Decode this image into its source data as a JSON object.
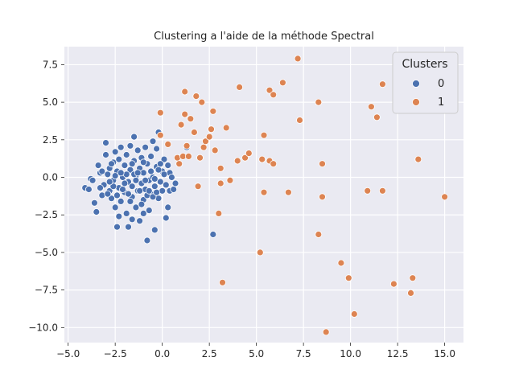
{
  "chart_data": {
    "type": "scatter",
    "title": "Clustering a l'aide de la méthode Spectral",
    "xlabel": "",
    "ylabel": "",
    "xlim": [
      -5.2,
      16.0
    ],
    "ylim": [
      -11.0,
      8.7
    ],
    "xticks": [
      -5.0,
      -2.5,
      0.0,
      2.5,
      5.0,
      7.5,
      10.0,
      12.5,
      15.0
    ],
    "xtick_labels": [
      "−5.0",
      "−2.5",
      "0.0",
      "2.5",
      "5.0",
      "7.5",
      "10.0",
      "12.5",
      "15.0"
    ],
    "yticks": [
      7.5,
      5.0,
      2.5,
      0.0,
      -2.5,
      -5.0,
      -7.5,
      -10.0
    ],
    "ytick_labels": [
      "7.5",
      "5.0",
      "2.5",
      "0.0",
      "−2.5",
      "−5.0",
      "−7.5",
      "−10.0"
    ],
    "grid": true,
    "legend": {
      "title": "Clusters",
      "placement": "top-right"
    },
    "series": [
      {
        "name": "0",
        "color": "#4c72b0",
        "points": [
          [
            -4.1,
            -0.7
          ],
          [
            -3.8,
            -0.1
          ],
          [
            -3.6,
            -1.7
          ],
          [
            -3.5,
            -2.3
          ],
          [
            -3.4,
            0.8
          ],
          [
            -3.3,
            0.3
          ],
          [
            -3.2,
            -1.2
          ],
          [
            -3.1,
            -0.5
          ],
          [
            -3.0,
            1.5
          ],
          [
            -3.0,
            2.3
          ],
          [
            -2.9,
            0.2
          ],
          [
            -2.8,
            -0.9
          ],
          [
            -2.8,
            0.6
          ],
          [
            -2.7,
            -1.4
          ],
          [
            -2.6,
            1.0
          ],
          [
            -2.6,
            -0.2
          ],
          [
            -2.5,
            1.7
          ],
          [
            -2.5,
            -2.0
          ],
          [
            -2.4,
            0.4
          ],
          [
            -2.4,
            -3.3
          ],
          [
            -2.3,
            -0.7
          ],
          [
            -2.3,
            1.2
          ],
          [
            -2.2,
            -1.6
          ],
          [
            -2.2,
            2.0
          ],
          [
            -2.1,
            0.0
          ],
          [
            -2.0,
            -1.0
          ],
          [
            -2.0,
            0.8
          ],
          [
            -1.9,
            -2.4
          ],
          [
            -1.9,
            1.5
          ],
          [
            -1.8,
            -0.3
          ],
          [
            -1.8,
            -3.3
          ],
          [
            -1.7,
            0.5
          ],
          [
            -1.7,
            2.1
          ],
          [
            -1.6,
            -1.3
          ],
          [
            -1.6,
            -0.6
          ],
          [
            -1.5,
            1.1
          ],
          [
            -1.5,
            2.7
          ],
          [
            -1.4,
            -2.0
          ],
          [
            -1.4,
            0.1
          ],
          [
            -1.3,
            -0.9
          ],
          [
            -1.3,
            1.8
          ],
          [
            -1.2,
            0.6
          ],
          [
            -1.2,
            -2.9
          ],
          [
            -1.1,
            -0.4
          ],
          [
            -1.1,
            1.3
          ],
          [
            -1.0,
            -1.5
          ],
          [
            -1.0,
            0.3
          ],
          [
            -0.9,
            -0.8
          ],
          [
            -0.9,
            2.0
          ],
          [
            -0.8,
            -4.2
          ],
          [
            -0.8,
            0.9
          ],
          [
            -0.7,
            -0.2
          ],
          [
            -0.7,
            -2.2
          ],
          [
            -0.6,
            1.4
          ],
          [
            -0.6,
            -1.1
          ],
          [
            -0.5,
            0.0
          ],
          [
            -0.5,
            2.4
          ],
          [
            -0.4,
            -0.6
          ],
          [
            -0.4,
            -3.5
          ],
          [
            -0.3,
            0.7
          ],
          [
            -0.3,
            1.9
          ],
          [
            -0.2,
            -1.4
          ],
          [
            -0.2,
            3.0
          ],
          [
            -0.1,
            -0.3
          ],
          [
            0.0,
            0.4
          ],
          [
            0.0,
            -0.9
          ],
          [
            0.1,
            1.2
          ],
          [
            0.2,
            -2.7
          ],
          [
            0.2,
            -0.5
          ],
          [
            0.3,
            -2.0
          ],
          [
            0.4,
            0.3
          ],
          [
            0.4,
            -0.9
          ],
          [
            0.5,
            0.0
          ],
          [
            0.6,
            -0.8
          ],
          [
            0.7,
            -0.4
          ],
          [
            1.3,
            2.0
          ],
          [
            2.7,
            -3.8
          ],
          [
            -3.9,
            -0.8
          ],
          [
            -3.7,
            -0.2
          ],
          [
            -3.3,
            -0.7
          ],
          [
            -2.9,
            -1.1
          ],
          [
            -2.7,
            0.9
          ],
          [
            -2.4,
            -1.2
          ],
          [
            -2.1,
            -0.8
          ],
          [
            -1.9,
            0.2
          ],
          [
            -1.6,
            0.9
          ],
          [
            -1.4,
            -0.2
          ],
          [
            -1.2,
            -0.9
          ],
          [
            -1.0,
            1.0
          ],
          [
            -0.8,
            -1.2
          ],
          [
            -0.6,
            0.4
          ],
          [
            -0.4,
            -0.1
          ],
          [
            -0.2,
            0.5
          ],
          [
            0.1,
            0.2
          ],
          [
            -2.6,
            -0.6
          ],
          [
            -2.2,
            0.3
          ],
          [
            -1.8,
            -1.1
          ],
          [
            -1.5,
            0.2
          ],
          [
            -1.1,
            -1.8
          ],
          [
            -0.7,
            -0.9
          ],
          [
            -3.2,
            0.4
          ],
          [
            -2.8,
            -0.3
          ],
          [
            -2.5,
            0.1
          ],
          [
            -2.0,
            -0.4
          ],
          [
            -1.7,
            -1.6
          ],
          [
            -1.3,
            0.3
          ],
          [
            -0.9,
            -0.2
          ],
          [
            -0.5,
            -1.3
          ],
          [
            -0.1,
            0.9
          ],
          [
            -2.3,
            -2.6
          ],
          [
            -1.6,
            -2.8
          ],
          [
            -1.0,
            -2.4
          ],
          [
            -0.3,
            -1.0
          ],
          [
            0.3,
            0.8
          ]
        ]
      },
      {
        "name": "1",
        "color": "#dd8452",
        "points": [
          [
            -0.1,
            4.3
          ],
          [
            -0.1,
            2.8
          ],
          [
            0.3,
            2.2
          ],
          [
            0.8,
            1.3
          ],
          [
            0.9,
            0.9
          ],
          [
            1.0,
            3.5
          ],
          [
            1.1,
            1.4
          ],
          [
            1.2,
            5.7
          ],
          [
            1.2,
            4.2
          ],
          [
            1.3,
            2.1
          ],
          [
            1.4,
            1.4
          ],
          [
            1.5,
            3.9
          ],
          [
            1.7,
            3.0
          ],
          [
            1.8,
            5.4
          ],
          [
            1.9,
            -0.6
          ],
          [
            2.0,
            1.3
          ],
          [
            2.1,
            5.0
          ],
          [
            2.2,
            2.0
          ],
          [
            2.3,
            2.4
          ],
          [
            2.5,
            2.7
          ],
          [
            2.6,
            3.2
          ],
          [
            2.7,
            4.4
          ],
          [
            2.8,
            1.8
          ],
          [
            3.0,
            -2.4
          ],
          [
            3.1,
            0.6
          ],
          [
            3.1,
            -0.4
          ],
          [
            3.2,
            -7.0
          ],
          [
            3.4,
            3.3
          ],
          [
            3.6,
            -0.2
          ],
          [
            4.0,
            1.1
          ],
          [
            4.1,
            6.0
          ],
          [
            4.4,
            1.3
          ],
          [
            4.6,
            1.6
          ],
          [
            5.2,
            -5.0
          ],
          [
            5.3,
            1.2
          ],
          [
            5.4,
            -1.0
          ],
          [
            5.4,
            2.8
          ],
          [
            5.7,
            5.8
          ],
          [
            5.7,
            1.1
          ],
          [
            5.9,
            5.5
          ],
          [
            5.9,
            0.9
          ],
          [
            6.4,
            6.3
          ],
          [
            6.7,
            -1.0
          ],
          [
            7.2,
            7.9
          ],
          [
            7.3,
            3.8
          ],
          [
            8.3,
            5.0
          ],
          [
            8.3,
            -3.8
          ],
          [
            8.5,
            0.9
          ],
          [
            8.5,
            -1.3
          ],
          [
            8.7,
            -10.3
          ],
          [
            9.5,
            -5.7
          ],
          [
            9.9,
            -6.7
          ],
          [
            10.2,
            -9.1
          ],
          [
            10.9,
            -0.9
          ],
          [
            11.1,
            4.7
          ],
          [
            11.4,
            4.0
          ],
          [
            11.7,
            -0.9
          ],
          [
            11.7,
            6.2
          ],
          [
            12.3,
            -7.1
          ],
          [
            13.2,
            -7.7
          ],
          [
            13.3,
            -6.7
          ],
          [
            13.6,
            1.2
          ],
          [
            15.0,
            -1.3
          ]
        ]
      }
    ]
  }
}
